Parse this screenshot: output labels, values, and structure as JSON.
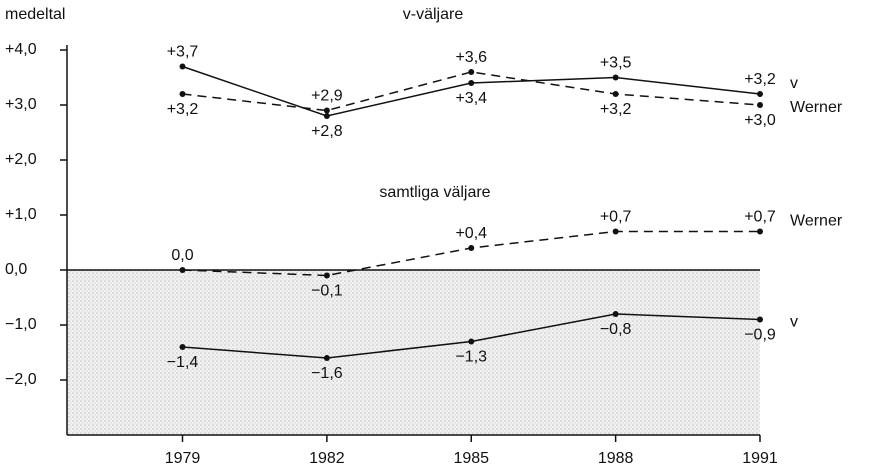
{
  "chart_data": {
    "type": "line",
    "y_label": "medeltal",
    "annotations": [
      "v-väljare",
      "samtliga väljare"
    ],
    "x": [
      1979,
      1982,
      1985,
      1988,
      1991
    ],
    "xlim": [
      1976.6,
      1991
    ],
    "xticks": [
      1979,
      1982,
      1985,
      1988,
      1991
    ],
    "ylim": [
      -3,
      4
    ],
    "yticks": [
      {
        "value": 4,
        "label": "+4,0"
      },
      {
        "value": 3,
        "label": "+3,0"
      },
      {
        "value": 2,
        "label": "+2,0"
      },
      {
        "value": 1,
        "label": "+1,0"
      },
      {
        "value": 0,
        "label": "0,0"
      },
      {
        "value": -1,
        "label": "−1,0"
      },
      {
        "value": -2,
        "label": "−2,0"
      }
    ],
    "series": [
      {
        "name": "v",
        "color": "#111111",
        "dashed": false,
        "values": [
          3.7,
          2.8,
          3.4,
          3.5,
          3.2
        ],
        "value_labels": [
          "+3,7",
          "+2,8",
          "+3,4",
          "+3,5",
          "+3,2"
        ]
      },
      {
        "name": "Werner",
        "color": "#111111",
        "dashed": true,
        "values": [
          3.2,
          2.9,
          3.6,
          3.2,
          3.0
        ],
        "value_labels": [
          "+3,2",
          "+2,9",
          "+3,6",
          "+3,2",
          "+3,0"
        ]
      },
      {
        "name": "Werner",
        "color": "#111111",
        "dashed": true,
        "values": [
          0.0,
          -0.1,
          0.4,
          0.7,
          0.7
        ],
        "value_labels": [
          "0,0",
          "−0,1",
          "+0,4",
          "+0,7",
          "+0,7"
        ]
      },
      {
        "name": "v",
        "color": "#111111",
        "dashed": false,
        "values": [
          -1.4,
          -1.6,
          -1.3,
          -0.8,
          -0.9
        ],
        "value_labels": [
          "−1,4",
          "−1,6",
          "−1,3",
          "−0,8",
          "−0,9"
        ]
      }
    ]
  }
}
